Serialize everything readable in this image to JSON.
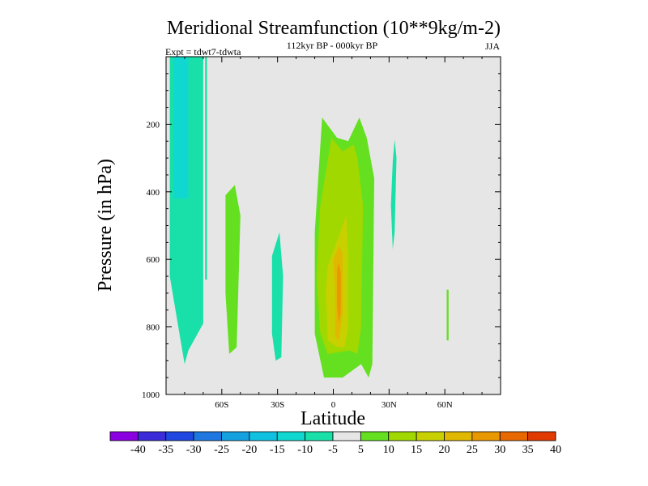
{
  "chart_data": {
    "type": "contour",
    "title": "Meridional Streamfunction (10**9kg/m-2)",
    "subtitle": "112kyr BP - 000kyr BP",
    "left_annotation": "Expt = tdwt7-tdwta",
    "right_annotation": "JJA",
    "xlabel": "Latitude",
    "ylabel": "Pressure (in hPa)",
    "xlim": [
      -90,
      90
    ],
    "ylim": [
      1000,
      0
    ],
    "x_ticks": [
      {
        "value": -60,
        "label": "60S"
      },
      {
        "value": -30,
        "label": "30S"
      },
      {
        "value": 0,
        "label": "0"
      },
      {
        "value": 30,
        "label": "30N"
      },
      {
        "value": 60,
        "label": "60N"
      }
    ],
    "y_ticks": [
      {
        "value": 200,
        "label": "200"
      },
      {
        "value": 400,
        "label": "400"
      },
      {
        "value": 600,
        "label": "600"
      },
      {
        "value": 800,
        "label": "800"
      },
      {
        "value": 1000,
        "label": "1000"
      }
    ],
    "colorbar": {
      "labels": [
        "-40",
        "-35",
        "-30",
        "-25",
        "-20",
        "-15",
        "-10",
        "-5",
        "5",
        "10",
        "15",
        "20",
        "25",
        "30",
        "35",
        "40"
      ],
      "colors": [
        "#8a00e0",
        "#3b2bd8",
        "#2048e0",
        "#1f78e0",
        "#15a0e0",
        "#10c0e0",
        "#10d8d0",
        "#18e0a8",
        "#e6e6e6",
        "#64e020",
        "#a0d800",
        "#c8d000",
        "#e0b800",
        "#e89800",
        "#e86800",
        "#e03a00"
      ]
    },
    "background_color": "#e6e6e6",
    "regions": [
      {
        "name": "south-polar-negative",
        "value_bin": "-10 to -5",
        "x": [
          -88,
          -70,
          -70,
          -78,
          -80,
          -88
        ],
        "y": [
          0,
          0,
          790,
          870,
          910,
          650
        ]
      },
      {
        "name": "south-polar-inner-negative",
        "value_bin": "-15 to -10",
        "x": [
          -86,
          -78,
          -78,
          -86
        ],
        "y": [
          0,
          0,
          420,
          420
        ]
      },
      {
        "name": "south-polar-sliver",
        "value_bin": "-10 to -5",
        "x": [
          -69,
          -68,
          -68,
          -69
        ],
        "y": [
          0,
          0,
          660,
          660
        ]
      },
      {
        "name": "southern-midlat-positive",
        "value_bin": "5 to 10",
        "x": [
          -58,
          -53,
          -50,
          -52,
          -56,
          -58
        ],
        "y": [
          410,
          380,
          470,
          860,
          880,
          700
        ]
      },
      {
        "name": "subtropical-negative",
        "value_bin": "-10 to -5",
        "x": [
          -33,
          -29,
          -27,
          -28,
          -31,
          -33
        ],
        "y": [
          590,
          520,
          650,
          890,
          900,
          820
        ]
      },
      {
        "name": "tropical-cell-outer",
        "value_bin": "5 to 10",
        "x": [
          -10,
          -6,
          2,
          8,
          14,
          18,
          22,
          21,
          19,
          15,
          5,
          -5,
          -10
        ],
        "y": [
          520,
          180,
          240,
          250,
          180,
          240,
          360,
          910,
          950,
          910,
          950,
          950,
          820
        ]
      },
      {
        "name": "tropical-cell-10",
        "value_bin": "10 to 15",
        "x": [
          -7,
          -1,
          5,
          11,
          13,
          16,
          15,
          13,
          9,
          -3,
          -7,
          -9
        ],
        "y": [
          440,
          240,
          280,
          260,
          300,
          440,
          800,
          880,
          870,
          880,
          820,
          650
        ]
      },
      {
        "name": "tropical-cell-15",
        "value_bin": "15 to 20",
        "x": [
          -3,
          3,
          7,
          8,
          8,
          6,
          2,
          -3,
          -4
        ],
        "y": [
          620,
          530,
          470,
          600,
          800,
          860,
          860,
          840,
          700
        ]
      },
      {
        "name": "tropical-cell-20",
        "value_bin": "20 to 25",
        "x": [
          0,
          3,
          5,
          5,
          3,
          1,
          1
        ],
        "y": [
          600,
          560,
          580,
          760,
          840,
          830,
          700
        ]
      },
      {
        "name": "tropical-cell-25",
        "value_bin": "25 to 30",
        "x": [
          2,
          3,
          4,
          4,
          3,
          2
        ],
        "y": [
          630,
          610,
          640,
          760,
          790,
          740
        ]
      },
      {
        "name": "nh-upper-negative",
        "value_bin": "-10 to -5",
        "x": [
          32,
          33,
          34,
          33,
          32,
          31
        ],
        "y": [
          310,
          245,
          300,
          520,
          570,
          440
        ]
      },
      {
        "name": "nh-highlat-positive",
        "value_bin": "5 to 10",
        "x": [
          61,
          62,
          62,
          61
        ],
        "y": [
          690,
          690,
          840,
          840
        ]
      }
    ]
  }
}
